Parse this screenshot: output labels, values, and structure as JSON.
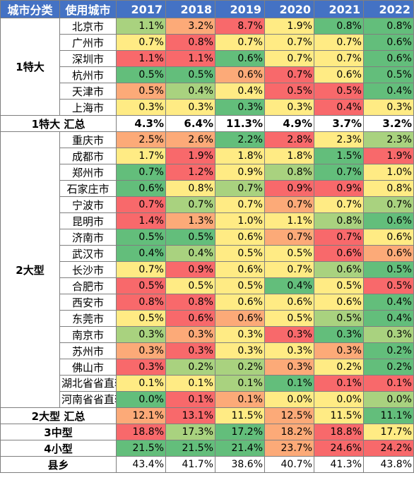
{
  "headers": {
    "category": "城市分类",
    "city": "使用城市",
    "years": [
      "2017",
      "2018",
      "2019",
      "2020",
      "2021",
      "2022"
    ]
  },
  "palette": {
    "dark_green": "#63be7b",
    "green": "#a9d27f",
    "yellow": "#ffeb84",
    "orange": "#fcaa78",
    "red": "#f8696b",
    "header_blue": "#4472c4"
  },
  "groups": [
    {
      "category": "1特大",
      "rows": [
        {
          "city": "北京市",
          "values": [
            "1.1%",
            "3.2%",
            "8.7%",
            "1.9%",
            "0.8%",
            "0.8%"
          ],
          "colors": [
            "green",
            "orange",
            "red",
            "yellow",
            "dark_green",
            "dark_green"
          ]
        },
        {
          "city": "广州市",
          "values": [
            "0.7%",
            "0.8%",
            "0.7%",
            "0.7%",
            "0.7%",
            "0.6%"
          ],
          "colors": [
            "yellow",
            "red",
            "yellow",
            "yellow",
            "yellow",
            "dark_green"
          ]
        },
        {
          "city": "深圳市",
          "values": [
            "1.1%",
            "1.1%",
            "0.6%",
            "0.7%",
            "0.7%",
            "0.6%"
          ],
          "colors": [
            "red",
            "red",
            "dark_green",
            "yellow",
            "yellow",
            "dark_green"
          ]
        },
        {
          "city": "杭州市",
          "values": [
            "0.5%",
            "0.5%",
            "0.6%",
            "0.7%",
            "0.6%",
            "0.5%"
          ],
          "colors": [
            "dark_green",
            "dark_green",
            "orange",
            "red",
            "yellow",
            "dark_green"
          ]
        },
        {
          "city": "天津市",
          "values": [
            "0.5%",
            "0.4%",
            "0.4%",
            "0.5%",
            "0.5%",
            "0.4%"
          ],
          "colors": [
            "orange",
            "green",
            "yellow",
            "red",
            "red",
            "dark_green"
          ]
        },
        {
          "city": "上海市",
          "values": [
            "0.3%",
            "0.3%",
            "0.3%",
            "0.3%",
            "0.4%",
            "0.3%"
          ],
          "colors": [
            "yellow",
            "yellow",
            "dark_green",
            "yellow",
            "red",
            "yellow"
          ]
        }
      ],
      "subtotal": {
        "label": "1特大 汇总",
        "values": [
          "4.3%",
          "6.4%",
          "11.3%",
          "4.9%",
          "3.7%",
          "3.2%"
        ]
      }
    },
    {
      "category": "2大型",
      "rows": [
        {
          "city": "重庆市",
          "values": [
            "2.5%",
            "2.6%",
            "2.2%",
            "2.8%",
            "2.3%",
            "2.3%"
          ],
          "colors": [
            "orange",
            "orange",
            "dark_green",
            "red",
            "yellow",
            "green"
          ]
        },
        {
          "city": "成都市",
          "values": [
            "1.7%",
            "1.9%",
            "1.8%",
            "1.8%",
            "1.5%",
            "1.9%"
          ],
          "colors": [
            "yellow",
            "red",
            "yellow",
            "yellow",
            "dark_green",
            "red"
          ]
        },
        {
          "city": "郑州市",
          "values": [
            "0.7%",
            "1.2%",
            "0.9%",
            "0.8%",
            "0.7%",
            "1.0%"
          ],
          "colors": [
            "dark_green",
            "red",
            "yellow",
            "green",
            "dark_green",
            "yellow"
          ]
        },
        {
          "city": "石家庄市",
          "values": [
            "0.6%",
            "0.8%",
            "0.7%",
            "0.9%",
            "0.9%",
            "0.8%"
          ],
          "colors": [
            "dark_green",
            "yellow",
            "green",
            "red",
            "red",
            "yellow"
          ]
        },
        {
          "city": "宁波市",
          "values": [
            "0.7%",
            "0.7%",
            "0.7%",
            "0.7%",
            "0.7%",
            "0.7%"
          ],
          "colors": [
            "red",
            "green",
            "yellow",
            "orange",
            "yellow",
            "green"
          ]
        },
        {
          "city": "昆明市",
          "values": [
            "1.4%",
            "1.3%",
            "1.0%",
            "1.1%",
            "0.8%",
            "0.6%"
          ],
          "colors": [
            "red",
            "orange",
            "yellow",
            "yellow",
            "green",
            "dark_green"
          ]
        },
        {
          "city": "济南市",
          "values": [
            "0.5%",
            "0.5%",
            "0.6%",
            "0.7%",
            "0.7%",
            "0.6%"
          ],
          "colors": [
            "dark_green",
            "dark_green",
            "yellow",
            "orange",
            "red",
            "yellow"
          ]
        },
        {
          "city": "武汉市",
          "values": [
            "0.4%",
            "0.4%",
            "0.5%",
            "0.5%",
            "0.6%",
            "0.6%"
          ],
          "colors": [
            "dark_green",
            "green",
            "yellow",
            "yellow",
            "red",
            "orange"
          ]
        },
        {
          "city": "长沙市",
          "values": [
            "0.7%",
            "0.9%",
            "0.6%",
            "0.7%",
            "0.6%",
            "0.5%"
          ],
          "colors": [
            "yellow",
            "red",
            "yellow",
            "yellow",
            "green",
            "dark_green"
          ]
        },
        {
          "city": "合肥市",
          "values": [
            "0.5%",
            "0.5%",
            "0.5%",
            "0.4%",
            "0.5%",
            "0.5%"
          ],
          "colors": [
            "red",
            "yellow",
            "yellow",
            "dark_green",
            "yellow",
            "red"
          ]
        },
        {
          "city": "西安市",
          "values": [
            "0.8%",
            "0.8%",
            "0.6%",
            "0.6%",
            "0.6%",
            "0.4%"
          ],
          "colors": [
            "red",
            "red",
            "yellow",
            "yellow",
            "yellow",
            "dark_green"
          ]
        },
        {
          "city": "东莞市",
          "values": [
            "0.5%",
            "0.6%",
            "0.6%",
            "0.5%",
            "0.5%",
            "0.4%"
          ],
          "colors": [
            "yellow",
            "red",
            "orange",
            "yellow",
            "green",
            "dark_green"
          ]
        },
        {
          "city": "南京市",
          "values": [
            "0.3%",
            "0.3%",
            "0.3%",
            "0.3%",
            "0.3%",
            "0.3%"
          ],
          "colors": [
            "green",
            "orange",
            "yellow",
            "red",
            "dark_green",
            "green"
          ]
        },
        {
          "city": "苏州市",
          "values": [
            "0.3%",
            "0.3%",
            "0.3%",
            "0.3%",
            "0.3%",
            "0.2%"
          ],
          "colors": [
            "orange",
            "red",
            "yellow",
            "yellow",
            "orange",
            "dark_green"
          ]
        },
        {
          "city": "佛山市",
          "values": [
            "0.3%",
            "0.2%",
            "0.2%",
            "0.3%",
            "0.2%",
            "0.2%"
          ],
          "colors": [
            "red",
            "green",
            "green",
            "orange",
            "yellow",
            "dark_green"
          ]
        },
        {
          "city": "湖北省省直辖",
          "values": [
            "0.1%",
            "0.1%",
            "0.1%",
            "0.1%",
            "0.1%",
            "0.1%"
          ],
          "colors": [
            "yellow",
            "yellow",
            "green",
            "dark_green",
            "red",
            "red"
          ]
        },
        {
          "city": "河南省省直辖",
          "values": [
            "0.0%",
            "0.1%",
            "0.1%",
            "0.0%",
            "0.0%",
            "0.0%"
          ],
          "colors": [
            "dark_green",
            "red",
            "orange",
            "yellow",
            "yellow",
            "green"
          ]
        }
      ],
      "subtotal": {
        "label": "2大型 汇总",
        "values": [
          "12.1%",
          "13.1%",
          "11.5%",
          "12.5%",
          "11.5%",
          "11.1%"
        ],
        "colors": [
          "orange",
          "red",
          "yellow",
          "orange",
          "yellow",
          "dark_green"
        ]
      }
    }
  ],
  "totals": [
    {
      "label": "3中型",
      "values": [
        "18.8%",
        "17.3%",
        "17.2%",
        "18.2%",
        "18.8%",
        "17.7%"
      ],
      "colors": [
        "red",
        "green",
        "dark_green",
        "orange",
        "red",
        "yellow"
      ]
    },
    {
      "label": "4小型",
      "values": [
        "21.5%",
        "21.5%",
        "21.4%",
        "23.7%",
        "24.6%",
        "24.2%"
      ],
      "colors": [
        "dark_green",
        "dark_green",
        "dark_green",
        "orange",
        "red",
        "red"
      ]
    },
    {
      "label": "县乡",
      "values": [
        "43.4%",
        "41.7%",
        "38.6%",
        "40.7%",
        "41.3%",
        "43.8%"
      ],
      "colors": [
        "plain",
        "plain",
        "plain",
        "plain",
        "plain",
        "plain"
      ]
    }
  ]
}
